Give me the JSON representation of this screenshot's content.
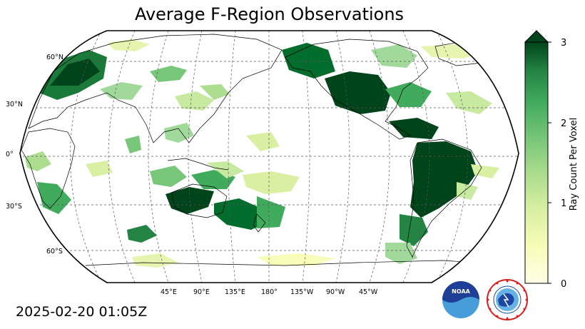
{
  "title": "Average F-Region Observations",
  "timestamp": "2025-02-20 01:05Z",
  "colorbar": {
    "label": "Ray Count Per Voxel",
    "ticks": [
      "0",
      "1",
      "2",
      "3"
    ],
    "min": 0,
    "max": 3,
    "extend": "max",
    "colormap": "YlGn",
    "colors": {
      "low": "#ffffe5",
      "mid": "#a1d99b",
      "high": "#00441b"
    }
  },
  "map": {
    "projection": "Robinson",
    "central_longitude": 180,
    "lat_labels": [
      "60°N",
      "30°N",
      "0°",
      "30°S",
      "60°S"
    ],
    "lon_labels": [
      "45°E",
      "90°E",
      "135°E",
      "180°",
      "135°W",
      "90°W",
      "45°W"
    ],
    "gridlines": true,
    "land_edge_color": "#000000"
  },
  "logos": {
    "noaa": {
      "text": "NOAA",
      "colors": {
        "top": "#1f3f97",
        "bottom": "#1e88d2"
      }
    },
    "nws": {
      "text": "NATIONAL WEATHER SERVICE",
      "colors": {
        "ring": "#d62020",
        "inner": "#1a47a3"
      }
    }
  }
}
